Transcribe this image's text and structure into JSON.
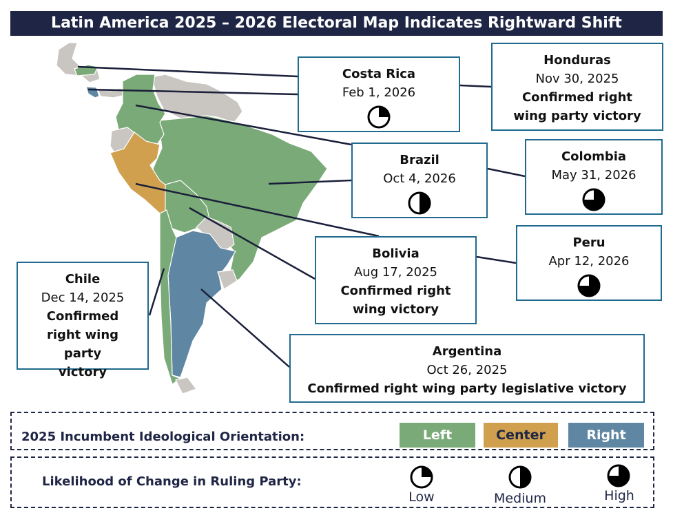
{
  "title": "Latin America 2025 – 2026 Electoral Map Indicates Rightward Shift",
  "colors": {
    "left": "#7aaa77",
    "center": "#d0a04e",
    "right": "#5f87a3",
    "other": "#c9c5c0",
    "title_bg": "#1f2544",
    "box_border": "#1f6a8e"
  },
  "countries": {
    "costa_rica": {
      "name": "Costa Rica",
      "date": "Feb 1, 2026",
      "likelihood": "low"
    },
    "honduras": {
      "name": "Honduras",
      "date": "Nov 30, 2025",
      "status": "Confirmed right wing party victory"
    },
    "brazil": {
      "name": "Brazil",
      "date": "Oct 4, 2026",
      "likelihood": "medium"
    },
    "colombia": {
      "name": "Colombia",
      "date": "May 31, 2026",
      "likelihood": "high"
    },
    "peru": {
      "name": "Peru",
      "date": "Apr 12, 2026",
      "likelihood": "high"
    },
    "bolivia": {
      "name": "Bolivia",
      "date": "Aug 17, 2025",
      "status": "Confirmed right wing victory"
    },
    "chile": {
      "name": "Chile",
      "date": "Dec 14, 2025",
      "status": "Confirmed right wing party victory"
    },
    "argentina": {
      "name": "Argentina",
      "date": "Oct 26, 2025",
      "status": "Confirmed right wing party legislative victory"
    }
  },
  "legend": {
    "orientation_label": "2025 Incumbent Ideological Orientation:",
    "left": "Left",
    "center": "Center",
    "right": "Right",
    "likelihood_label": "Likelihood of Change in Ruling Party:",
    "low": "Low",
    "medium": "Medium",
    "high": "High"
  }
}
